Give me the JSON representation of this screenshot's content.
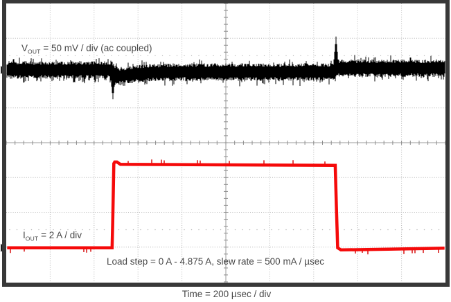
{
  "figure": {
    "background": "#ffffff",
    "frame_color": "#383838"
  },
  "labels": {
    "vout": {
      "base": "V",
      "sub": "OUT",
      "rest": " = 50 mV / div (ac coupled)"
    },
    "iout": {
      "base": "I",
      "sub": "OUT",
      "rest": " = 2 A / div"
    },
    "annotation": "Load step = 0 A - 4.875 A, slew rate = 500 mA / µsec",
    "time_axis": "Time = 200 µsec / div"
  },
  "chart_data": {
    "type": "line",
    "subtype": "oscilloscope-capture",
    "grid": {
      "h_divisions": 10,
      "v_divisions": 8,
      "time_per_div": "200 µsec",
      "half_div_dot_rows": [
        1.5,
        6.5
      ]
    },
    "colors": {
      "grid_dots": "#b5b5b5",
      "center_lines": "#9b9b9b",
      "tick_marks": "#8c8c8c",
      "dot_rows": "#bdbdbd",
      "marker": "#1a1a1a"
    },
    "traces": [
      {
        "id": "vout",
        "label": "VOUT = 50 mV / div (ac coupled)",
        "color": "#000000",
        "scale_per_div": "50 mV",
        "coupling": "ac",
        "marker_div": 1.91,
        "noise_halfwidth_div": 0.21,
        "noise_pp_mv": 25,
        "baseline_path_div": [
          [
            0,
            1.91
          ],
          [
            2.4,
            1.91
          ],
          [
            2.46,
            2.0
          ],
          [
            2.55,
            2.09
          ],
          [
            3.1,
            2.0
          ],
          [
            4.0,
            1.97
          ],
          [
            7.44,
            1.97
          ],
          [
            7.54,
            1.86
          ],
          [
            10,
            1.86
          ]
        ],
        "events": [
          {
            "t_div": 2.43,
            "peak_div": 2.75,
            "direction": "down",
            "approx_amplitude_mv": -42,
            "cause": "load step rising edge"
          },
          {
            "t_div": 7.51,
            "peak_div": 0.95,
            "direction": "up",
            "approx_amplitude_mv": 48,
            "cause": "load step falling edge"
          }
        ]
      },
      {
        "id": "iout",
        "label": "IOUT = 2 A / div",
        "color": "#f50a0a",
        "tick_color": "#d40000",
        "scale_per_div": "2 A",
        "low_level_amps": 0,
        "high_level_amps": 4.875,
        "step_up_t_div": 2.42,
        "step_down_t_div": 7.51,
        "pulse_width_usec": 1018,
        "marker_div": 7.02,
        "thickness_px": 4.5,
        "path_div": [
          [
            0.02,
            7.02
          ],
          [
            2.41,
            7.02
          ],
          [
            2.425,
            6.3
          ],
          [
            2.45,
            4.6
          ],
          [
            2.47,
            4.555
          ],
          [
            2.52,
            4.555
          ],
          [
            2.6,
            4.62
          ],
          [
            4.6,
            4.635
          ],
          [
            7.49,
            4.65
          ],
          [
            7.515,
            5.8
          ],
          [
            7.545,
            7.02
          ],
          [
            7.62,
            7.08
          ],
          [
            8.7,
            7.06
          ],
          [
            9.98,
            7.03
          ]
        ]
      }
    ]
  }
}
